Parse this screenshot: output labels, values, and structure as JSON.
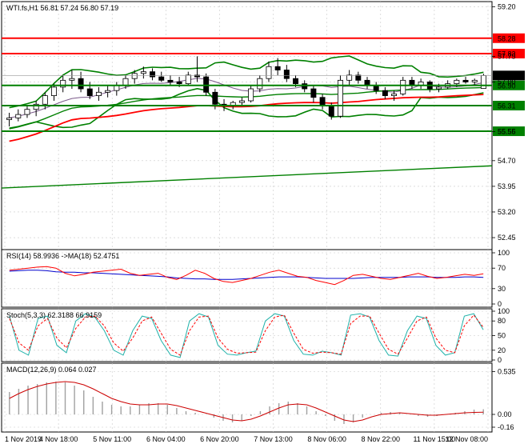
{
  "main": {
    "title": "WTI.fs,H1  56.81 57.24 56.80 57.19",
    "ylim": [
      52.1,
      59.35
    ],
    "y_ticks": [
      "59.20",
      "57.75",
      "57.00",
      "55.55",
      "54.70",
      "53.95",
      "53.20",
      "52.45"
    ],
    "tick_values": [
      59.2,
      57.75,
      57.0,
      55.55,
      54.7,
      53.95,
      53.2,
      52.45
    ],
    "levels": [
      {
        "value": 58.28,
        "label": "58.28",
        "color": "#ff0000"
      },
      {
        "value": 57.83,
        "label": "57.83",
        "color": "#ff0000"
      },
      {
        "value": 56.9,
        "label": "56.90",
        "color": "#008000"
      },
      {
        "value": 56.31,
        "label": "56.31",
        "color": "#008000"
      },
      {
        "value": 55.56,
        "label": "55.56",
        "color": "#008000"
      }
    ],
    "current_price": {
      "value": 57.19,
      "label": "57.19"
    },
    "candles": [
      {
        "o": 55.9,
        "h": 56.1,
        "l": 55.7,
        "c": 55.95
      },
      {
        "o": 55.95,
        "h": 56.2,
        "l": 55.85,
        "c": 56.05
      },
      {
        "o": 56.05,
        "h": 56.3,
        "l": 55.95,
        "c": 56.2
      },
      {
        "o": 56.2,
        "h": 56.45,
        "l": 56.0,
        "c": 56.35
      },
      {
        "o": 56.35,
        "h": 56.7,
        "l": 56.2,
        "c": 56.6
      },
      {
        "o": 56.6,
        "h": 56.95,
        "l": 56.45,
        "c": 56.85
      },
      {
        "o": 56.85,
        "h": 57.2,
        "l": 56.7,
        "c": 57.05
      },
      {
        "o": 57.05,
        "h": 57.35,
        "l": 56.8,
        "c": 57.1
      },
      {
        "o": 57.1,
        "h": 57.3,
        "l": 56.7,
        "c": 56.8
      },
      {
        "o": 56.8,
        "h": 57.0,
        "l": 56.5,
        "c": 56.6
      },
      {
        "o": 56.6,
        "h": 56.85,
        "l": 56.45,
        "c": 56.7
      },
      {
        "o": 56.7,
        "h": 56.9,
        "l": 56.55,
        "c": 56.75
      },
      {
        "o": 56.75,
        "h": 57.0,
        "l": 56.6,
        "c": 56.9
      },
      {
        "o": 56.9,
        "h": 57.2,
        "l": 56.8,
        "c": 57.1
      },
      {
        "o": 57.1,
        "h": 57.35,
        "l": 56.95,
        "c": 57.25
      },
      {
        "o": 57.25,
        "h": 57.45,
        "l": 57.1,
        "c": 57.3
      },
      {
        "o": 57.3,
        "h": 57.4,
        "l": 57.05,
        "c": 57.15
      },
      {
        "o": 57.15,
        "h": 57.3,
        "l": 57.0,
        "c": 57.05
      },
      {
        "o": 57.05,
        "h": 57.2,
        "l": 56.9,
        "c": 57.0
      },
      {
        "o": 57.0,
        "h": 57.15,
        "l": 56.85,
        "c": 56.95
      },
      {
        "o": 56.95,
        "h": 57.3,
        "l": 56.9,
        "c": 57.2
      },
      {
        "o": 57.2,
        "h": 57.75,
        "l": 57.0,
        "c": 57.15
      },
      {
        "o": 57.15,
        "h": 57.25,
        "l": 56.6,
        "c": 56.7
      },
      {
        "o": 56.7,
        "h": 56.8,
        "l": 56.2,
        "c": 56.35
      },
      {
        "o": 56.35,
        "h": 56.5,
        "l": 56.15,
        "c": 56.3
      },
      {
        "o": 56.3,
        "h": 56.45,
        "l": 56.2,
        "c": 56.4
      },
      {
        "o": 56.4,
        "h": 56.55,
        "l": 56.3,
        "c": 56.45
      },
      {
        "o": 56.45,
        "h": 56.9,
        "l": 56.4,
        "c": 56.8
      },
      {
        "o": 56.8,
        "h": 57.2,
        "l": 56.7,
        "c": 57.1
      },
      {
        "o": 57.1,
        "h": 57.6,
        "l": 57.0,
        "c": 57.45
      },
      {
        "o": 57.45,
        "h": 57.7,
        "l": 57.2,
        "c": 57.35
      },
      {
        "o": 57.35,
        "h": 57.5,
        "l": 57.0,
        "c": 57.1
      },
      {
        "o": 57.1,
        "h": 57.2,
        "l": 56.85,
        "c": 56.95
      },
      {
        "o": 56.95,
        "h": 57.05,
        "l": 56.7,
        "c": 56.8
      },
      {
        "o": 56.8,
        "h": 56.9,
        "l": 56.4,
        "c": 56.55
      },
      {
        "o": 56.55,
        "h": 56.65,
        "l": 56.2,
        "c": 56.3
      },
      {
        "o": 56.3,
        "h": 56.4,
        "l": 55.9,
        "c": 56.0
      },
      {
        "o": 56.0,
        "h": 57.2,
        "l": 55.95,
        "c": 57.05
      },
      {
        "o": 57.05,
        "h": 57.35,
        "l": 56.9,
        "c": 57.2
      },
      {
        "o": 57.2,
        "h": 57.3,
        "l": 56.95,
        "c": 57.05
      },
      {
        "o": 57.05,
        "h": 57.15,
        "l": 56.8,
        "c": 56.9
      },
      {
        "o": 56.9,
        "h": 57.0,
        "l": 56.65,
        "c": 56.75
      },
      {
        "o": 56.75,
        "h": 56.85,
        "l": 56.5,
        "c": 56.6
      },
      {
        "o": 56.6,
        "h": 56.75,
        "l": 56.45,
        "c": 56.65
      },
      {
        "o": 56.65,
        "h": 57.15,
        "l": 56.6,
        "c": 57.05
      },
      {
        "o": 57.05,
        "h": 57.15,
        "l": 56.8,
        "c": 56.9
      },
      {
        "o": 56.9,
        "h": 57.1,
        "l": 56.8,
        "c": 57.0
      },
      {
        "o": 57.0,
        "h": 57.05,
        "l": 56.7,
        "c": 56.8
      },
      {
        "o": 56.8,
        "h": 56.95,
        "l": 56.7,
        "c": 56.85
      },
      {
        "o": 56.85,
        "h": 57.05,
        "l": 56.8,
        "c": 56.95
      },
      {
        "o": 56.95,
        "h": 57.1,
        "l": 56.85,
        "c": 57.05
      },
      {
        "o": 57.05,
        "h": 57.15,
        "l": 56.95,
        "c": 57.0
      },
      {
        "o": 57.0,
        "h": 57.1,
        "l": 56.9,
        "c": 57.05
      },
      {
        "o": 56.81,
        "h": 57.24,
        "l": 56.8,
        "c": 57.19
      }
    ]
  },
  "rsi": {
    "title": "RSI(14) 58.9936   ->MA(18) 52.4751",
    "ylim": [
      0,
      100
    ],
    "y_ticks": [
      "100",
      "70",
      "30",
      "0"
    ],
    "tick_values": [
      100,
      70,
      30,
      0
    ],
    "rsi_values": [
      66,
      68,
      70,
      72,
      73,
      70,
      60,
      55,
      58,
      62,
      64,
      66,
      68,
      60,
      56,
      58,
      60,
      52,
      48,
      56,
      66,
      60,
      50,
      44,
      42,
      46,
      50,
      56,
      62,
      66,
      60,
      54,
      52,
      46,
      42,
      38,
      46,
      56,
      58,
      54,
      50,
      48,
      52,
      56,
      60,
      54,
      50,
      52,
      55,
      58,
      56,
      59
    ],
    "ma_values": [
      64,
      65,
      66,
      66,
      65,
      63,
      62,
      62,
      61,
      61,
      60,
      59,
      58,
      57,
      56,
      55,
      54,
      53,
      51,
      50,
      49,
      49,
      48,
      48,
      48,
      49,
      50,
      51,
      52,
      53,
      53,
      53,
      52,
      51,
      50,
      50,
      50,
      50,
      51,
      52,
      52,
      52,
      52,
      53,
      53,
      53,
      52,
      52,
      52,
      53,
      53,
      52
    ]
  },
  "stoch": {
    "title": "Stoch(5,3,3) 62.3188 66.9159",
    "ylim": [
      0,
      100
    ],
    "y_ticks": [
      "100",
      "80",
      "50",
      "20",
      "0"
    ],
    "tick_values": [
      100,
      80,
      50,
      20,
      0
    ],
    "k_values": [
      90,
      20,
      10,
      85,
      90,
      30,
      15,
      80,
      95,
      88,
      60,
      20,
      10,
      60,
      90,
      85,
      40,
      10,
      5,
      80,
      95,
      88,
      30,
      12,
      10,
      15,
      18,
      80,
      95,
      90,
      40,
      12,
      10,
      18,
      15,
      10,
      92,
      95,
      88,
      40,
      10,
      8,
      60,
      90,
      85,
      30,
      10,
      15,
      90,
      95,
      62
    ],
    "d_values": [
      85,
      35,
      20,
      70,
      85,
      45,
      25,
      65,
      88,
      90,
      70,
      35,
      18,
      45,
      80,
      88,
      55,
      22,
      10,
      60,
      88,
      90,
      45,
      22,
      14,
      15,
      16,
      60,
      88,
      92,
      55,
      22,
      14,
      16,
      15,
      12,
      75,
      90,
      90,
      55,
      22,
      12,
      45,
      80,
      88,
      45,
      20,
      15,
      70,
      92,
      67
    ]
  },
  "macd": {
    "title": "MACD(12,26,9) 0.064 0.027",
    "ylim": [
      -0.2,
      0.6
    ],
    "y_ticks": [
      "0.535",
      "0.00",
      "-0.16"
    ],
    "tick_values": [
      0.535,
      0.0,
      -0.16
    ],
    "hist_values": [
      0.28,
      0.32,
      0.36,
      0.38,
      0.4,
      0.41,
      0.4,
      0.36,
      0.3,
      0.22,
      0.16,
      0.12,
      0.1,
      0.1,
      0.12,
      0.14,
      0.14,
      0.12,
      0.08,
      0.04,
      0.02,
      0.0,
      -0.04,
      -0.08,
      -0.1,
      -0.08,
      -0.02,
      0.04,
      0.1,
      0.14,
      0.16,
      0.14,
      0.1,
      0.04,
      -0.02,
      -0.08,
      -0.12,
      -0.1,
      -0.04,
      0.0,
      0.02,
      0.03,
      0.02,
      0.0,
      -0.02,
      -0.03,
      -0.02,
      0.0,
      0.02,
      0.04,
      0.06,
      0.064
    ],
    "signal_values": [
      0.2,
      0.26,
      0.31,
      0.35,
      0.38,
      0.4,
      0.41,
      0.4,
      0.37,
      0.32,
      0.26,
      0.2,
      0.16,
      0.13,
      0.12,
      0.12,
      0.13,
      0.13,
      0.11,
      0.08,
      0.05,
      0.02,
      -0.01,
      -0.04,
      -0.07,
      -0.08,
      -0.06,
      -0.02,
      0.03,
      0.08,
      0.12,
      0.13,
      0.12,
      0.08,
      0.03,
      -0.02,
      -0.07,
      -0.09,
      -0.07,
      -0.03,
      0.0,
      0.01,
      0.02,
      0.01,
      0.0,
      -0.01,
      -0.01,
      0.0,
      0.01,
      0.02,
      0.025,
      0.027
    ]
  },
  "x_axis": {
    "labels": [
      "1 Nov 2019",
      "4 Nov 18:00",
      "5 Nov 11:00",
      "6 Nov 04:00",
      "6 Nov 20:00",
      "7 Nov 13:00",
      "8 Nov 06:00",
      "8 Nov 22:00",
      "11 Nov 15:00",
      "12 Nov 08:00"
    ]
  },
  "colors": {
    "grid": "#c8c8c8",
    "candle_up": "#000000",
    "candle_down": "#000000",
    "bollinger": "#008000",
    "ma_red": "#ff0000",
    "rsi_line": "#ff0000",
    "rsi_ma": "#0000cc",
    "stoch_k": "#20b2aa",
    "stoch_d": "#ff0000",
    "macd_hist": "#a0a0a0",
    "macd_signal": "#cc0000"
  },
  "chart_data": {
    "type": "line",
    "title": "WTI.fs,H1  56.81 57.24 56.80 57.19",
    "xlabel": "",
    "ylabel": "",
    "ylim": [
      52.1,
      59.35
    ],
    "categories": [
      "1 Nov 2019",
      "4 Nov 18:00",
      "5 Nov 11:00",
      "6 Nov 04:00",
      "6 Nov 20:00",
      "7 Nov 13:00",
      "8 Nov 06:00",
      "8 Nov 22:00",
      "11 Nov 15:00",
      "12 Nov 08:00"
    ],
    "series": [
      {
        "values": [
          55.95,
          57.1,
          57.3,
          57.15,
          56.4,
          57.35,
          56.0,
          57.05,
          56.85,
          57.19
        ]
      }
    ],
    "levels": [
      58.28,
      57.83,
      56.9,
      56.31,
      55.56
    ],
    "grid": true
  }
}
